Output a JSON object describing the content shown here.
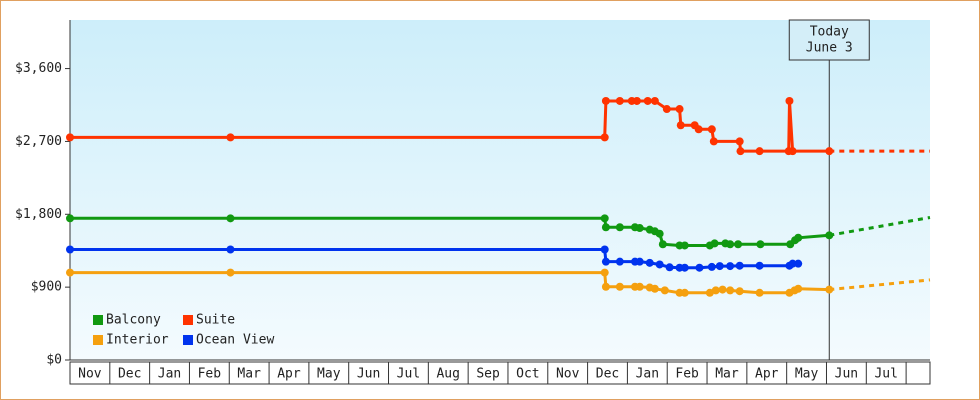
{
  "chart_data": {
    "type": "line",
    "xlim": [
      0,
      21.6
    ],
    "xticks": [
      {
        "value": 0.5,
        "label": "Nov"
      },
      {
        "value": 1.5,
        "label": "Dec"
      },
      {
        "value": 2.5,
        "label": "Jan"
      },
      {
        "value": 3.5,
        "label": "Feb"
      },
      {
        "value": 4.5,
        "label": "Mar"
      },
      {
        "value": 5.5,
        "label": "Apr"
      },
      {
        "value": 6.5,
        "label": "May"
      },
      {
        "value": 7.5,
        "label": "Jun"
      },
      {
        "value": 8.5,
        "label": "Jul"
      },
      {
        "value": 9.5,
        "label": "Aug"
      },
      {
        "value": 10.5,
        "label": "Sep"
      },
      {
        "value": 11.5,
        "label": "Oct"
      },
      {
        "value": 12.5,
        "label": "Nov"
      },
      {
        "value": 13.5,
        "label": "Dec"
      },
      {
        "value": 14.5,
        "label": "Jan"
      },
      {
        "value": 15.5,
        "label": "Feb"
      },
      {
        "value": 16.5,
        "label": "Mar"
      },
      {
        "value": 17.5,
        "label": "Apr"
      },
      {
        "value": 18.5,
        "label": "May"
      },
      {
        "value": 19.5,
        "label": "Jun"
      },
      {
        "value": 20.5,
        "label": "Jul"
      }
    ],
    "ylim": [
      0,
      4200
    ],
    "yticks": [
      {
        "value": 0,
        "label": "$0"
      },
      {
        "value": 900,
        "label": "$900"
      },
      {
        "value": 1800,
        "label": "$1,800"
      },
      {
        "value": 2700,
        "label": "$2,700"
      },
      {
        "value": 3600,
        "label": "$3,600"
      }
    ],
    "legend": "lower left",
    "today": {
      "x": 19.07,
      "label": [
        "Today",
        "June 3"
      ]
    },
    "series": [
      {
        "name": "Balcony",
        "color": "#119911",
        "x": [
          0,
          4.03,
          13.43,
          13.46,
          13.81,
          14.19,
          14.31,
          14.56,
          14.69,
          14.81,
          14.89,
          15.31,
          15.44,
          16.07,
          16.19,
          16.46,
          16.58,
          16.78,
          17.34,
          18.09,
          18.21,
          18.29,
          19.07,
          21.6
        ],
        "values": [
          1750,
          1750,
          1750,
          1640,
          1640,
          1640,
          1630,
          1610,
          1590,
          1560,
          1430,
          1415,
          1415,
          1415,
          1440,
          1440,
          1430,
          1430,
          1430,
          1430,
          1480,
          1510,
          1540,
          1760
        ]
      },
      {
        "name": "Suite",
        "color": "#ff3300",
        "x": [
          0,
          4.03,
          13.43,
          13.46,
          13.81,
          14.11,
          14.24,
          14.51,
          14.69,
          14.99,
          15.31,
          15.34,
          15.69,
          15.79,
          16.12,
          16.17,
          16.82,
          16.84,
          17.32,
          18.05,
          18.07,
          18.15,
          19.07,
          21.6
        ],
        "values": [
          2750,
          2750,
          2750,
          3200,
          3200,
          3200,
          3200,
          3200,
          3200,
          3100,
          3100,
          2900,
          2900,
          2850,
          2850,
          2700,
          2700,
          2580,
          2580,
          2580,
          3200,
          2580,
          2580,
          2580
        ]
      },
      {
        "name": "Interior",
        "color": "#f5a00f",
        "x": [
          0,
          4.03,
          13.43,
          13.46,
          13.81,
          14.19,
          14.31,
          14.56,
          14.69,
          14.94,
          15.31,
          15.44,
          16.07,
          16.22,
          16.39,
          16.58,
          16.82,
          17.32,
          18.07,
          18.2,
          18.29,
          19.07,
          21.6
        ],
        "values": [
          1080,
          1080,
          1080,
          905,
          905,
          905,
          905,
          895,
          880,
          860,
          830,
          830,
          830,
          860,
          870,
          860,
          850,
          830,
          830,
          860,
          880,
          870,
          990
        ]
      },
      {
        "name": "Ocean View",
        "color": "#0033ee",
        "x": [
          0,
          4.03,
          13.43,
          13.46,
          13.81,
          14.19,
          14.31,
          14.56,
          14.81,
          15.06,
          15.31,
          15.44,
          15.81,
          16.12,
          16.32,
          16.58,
          16.82,
          17.32,
          18.07,
          18.15,
          18.29
        ],
        "values": [
          1365,
          1365,
          1365,
          1215,
          1215,
          1215,
          1215,
          1200,
          1180,
          1145,
          1140,
          1140,
          1140,
          1150,
          1160,
          1160,
          1165,
          1165,
          1165,
          1190,
          1190
        ]
      }
    ]
  }
}
